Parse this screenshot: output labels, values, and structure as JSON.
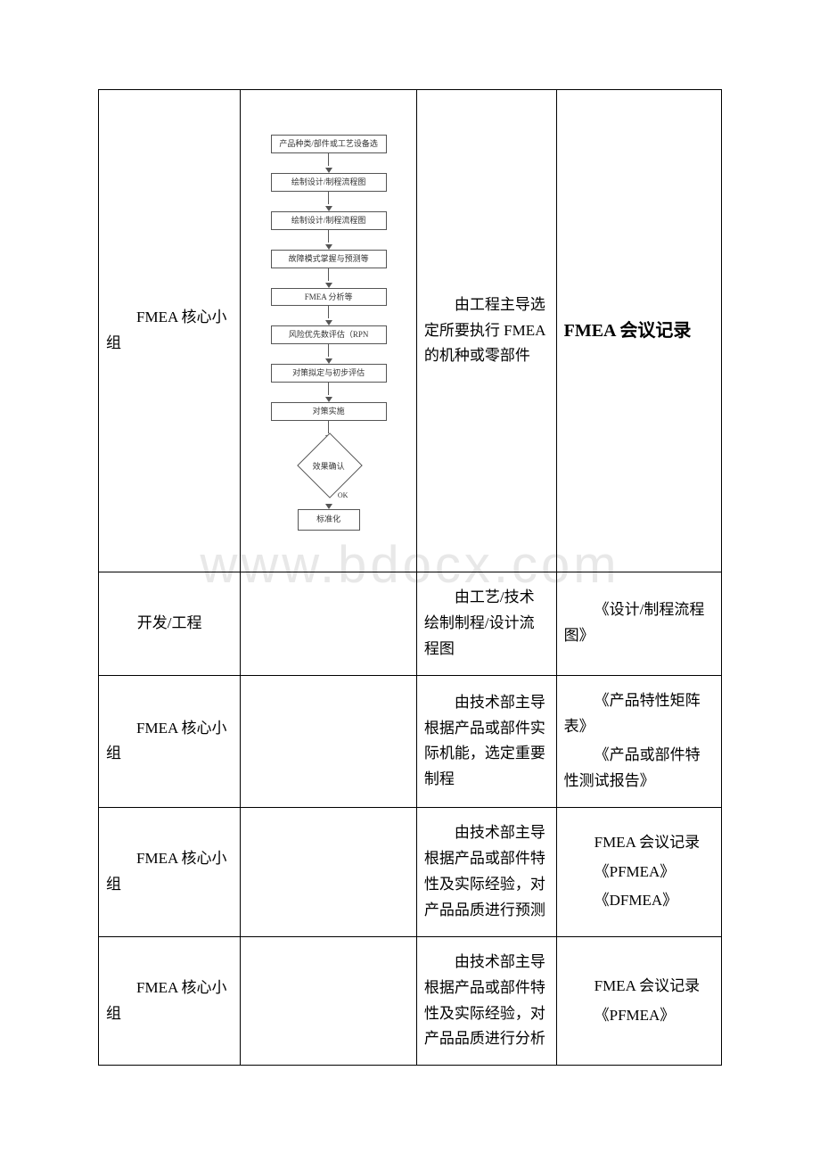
{
  "watermark": "www.bdocx.com",
  "flow": {
    "steps": [
      "产品种类/部件或工艺设备选",
      "绘制设计/制程流程图",
      "绘制设计/制程流程图",
      "故障模式掌握与预测等",
      "FMEA 分析等",
      "风险优先数评估（RPN",
      "对策拟定与初步评估",
      "对策实施"
    ],
    "decision": "效果确认",
    "ok": "OK",
    "end": "标准化"
  },
  "rows": [
    {
      "c1": "FMEA 核心小组",
      "c3": "由工程主导选定所要执行 FMEA 的机种或零部件",
      "c4": "FMEA 会议记录",
      "c4_bold": true
    },
    {
      "c1": "开发/工程",
      "c3": "由工艺/技术绘制制程/设计流程图",
      "c4": "《设计/制程流程图》"
    },
    {
      "c1": "FMEA 核心小组",
      "c3": "由技术部主导根据产品或部件实际机能，选定重要制程",
      "c4a": "《产品特性矩阵表》",
      "c4b": "《产品或部件特性测试报告》"
    },
    {
      "c1": "FMEA 核心小组",
      "c3": "由技术部主导根据产品或部件特性及实际经验，对产品品质进行预测",
      "c4a": "FMEA 会议记录",
      "c4b": "《PFMEA》",
      "c4c": "《DFMEA》"
    },
    {
      "c1": "FMEA 核心小组",
      "c3": "由技术部主导根据产品或部件特性及实际经验，对产品品质进行分析",
      "c4a": "FMEA 会议记录",
      "c4b": "《PFMEA》"
    }
  ]
}
